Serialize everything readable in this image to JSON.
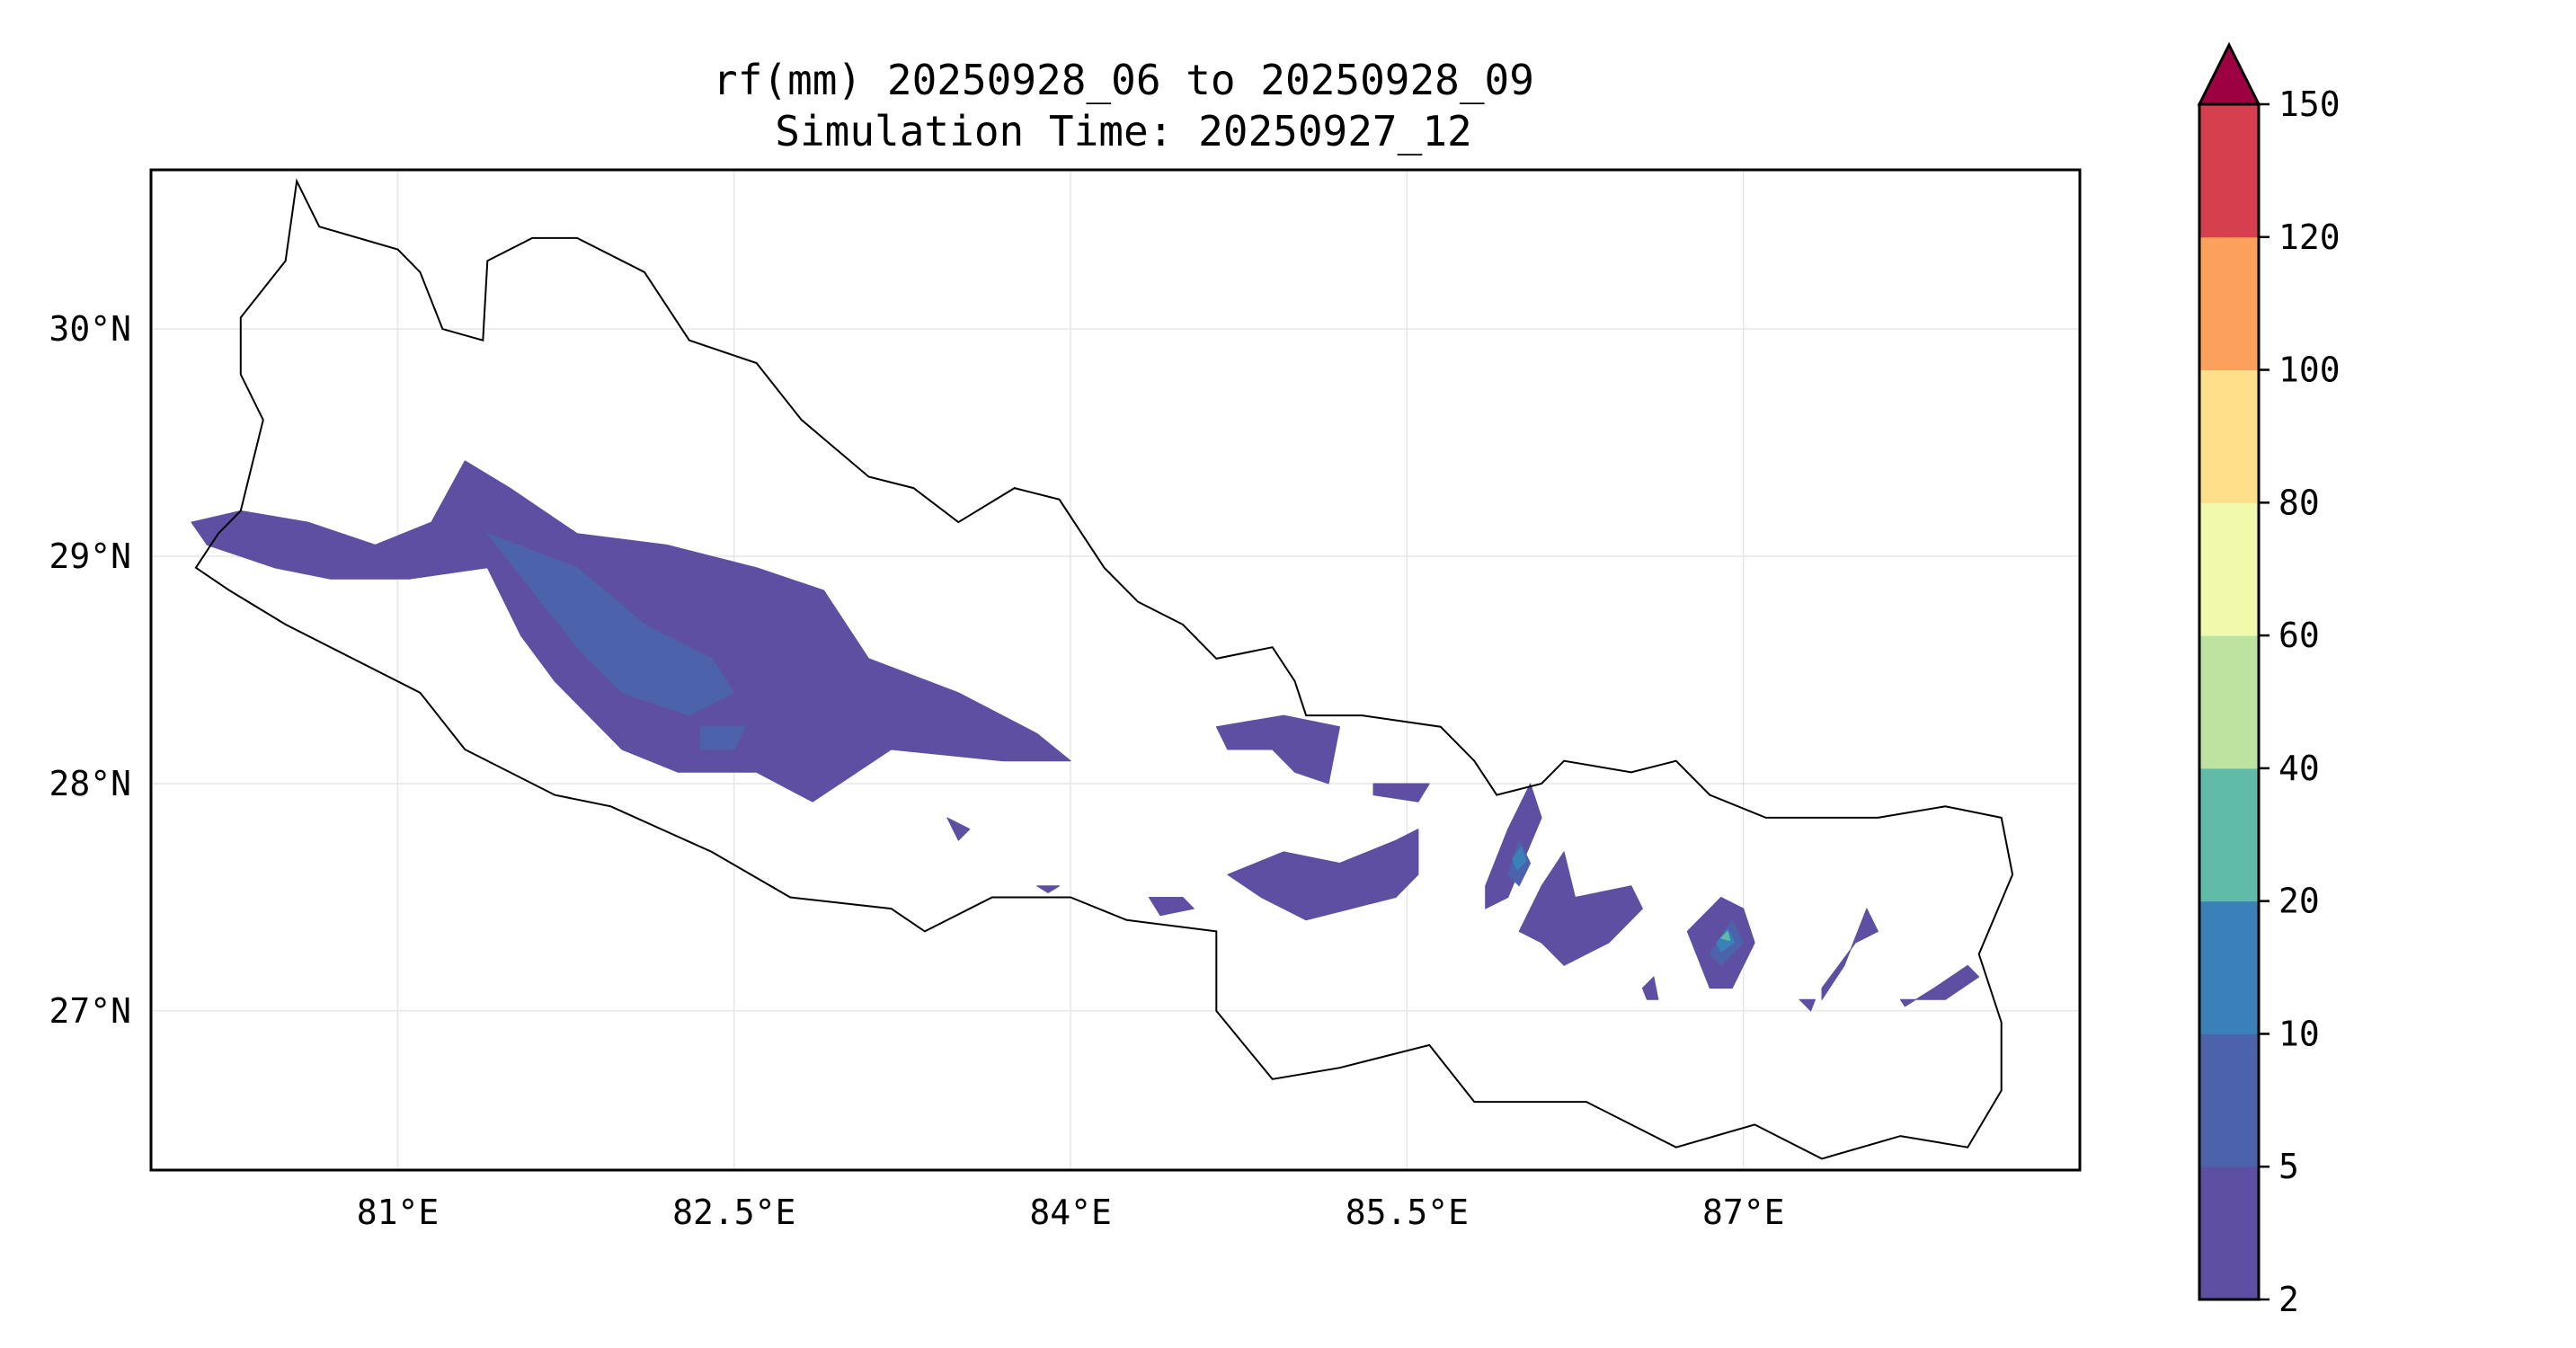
{
  "chart_data": {
    "type": "contour-map",
    "title": "rf(mm) 20250928_06 to 20250928_09",
    "subtitle": "Simulation Time: 20250927_12",
    "xlim": [
      79.9,
      88.5
    ],
    "ylim": [
      26.3,
      30.7
    ],
    "x_ticks": [
      {
        "value": 81.0,
        "label": "81°E"
      },
      {
        "value": 82.5,
        "label": "82.5°E"
      },
      {
        "value": 84.0,
        "label": "84°E"
      },
      {
        "value": 85.5,
        "label": "85.5°E"
      },
      {
        "value": 87.0,
        "label": "87°E"
      }
    ],
    "y_ticks": [
      {
        "value": 30.0,
        "label": "30°N"
      },
      {
        "value": 29.0,
        "label": "29°N"
      },
      {
        "value": 28.0,
        "label": "28°N"
      },
      {
        "value": 27.0,
        "label": "27°N"
      }
    ],
    "grid": true,
    "colorbar": {
      "levels": [
        2,
        5,
        10,
        20,
        40,
        60,
        80,
        100,
        120,
        150
      ],
      "labels": [
        "2",
        "5",
        "10",
        "20",
        "40",
        "60",
        "80",
        "100",
        "120",
        "150"
      ],
      "colors": [
        "#5e4fa2",
        "#4c63ab",
        "#3a80b9",
        "#60bba8",
        "#bde3a0",
        "#f1f9ac",
        "#fee08b",
        "#fba15b",
        "#d6404e"
      ],
      "extend_color": "#9e0142",
      "extend": "max"
    },
    "border": [
      [
        80.55,
        30.65
      ],
      [
        80.65,
        30.45
      ],
      [
        81.0,
        30.35
      ],
      [
        81.1,
        30.25
      ],
      [
        81.2,
        30.0
      ],
      [
        81.38,
        29.95
      ],
      [
        81.4,
        30.3
      ],
      [
        81.6,
        30.4
      ],
      [
        81.8,
        30.4
      ],
      [
        82.1,
        30.25
      ],
      [
        82.3,
        29.95
      ],
      [
        82.6,
        29.85
      ],
      [
        82.8,
        29.6
      ],
      [
        83.1,
        29.35
      ],
      [
        83.3,
        29.3
      ],
      [
        83.5,
        29.15
      ],
      [
        83.75,
        29.3
      ],
      [
        83.95,
        29.25
      ],
      [
        84.15,
        28.95
      ],
      [
        84.3,
        28.8
      ],
      [
        84.5,
        28.7
      ],
      [
        84.65,
        28.55
      ],
      [
        84.9,
        28.6
      ],
      [
        85.0,
        28.45
      ],
      [
        85.05,
        28.3
      ],
      [
        85.3,
        28.3
      ],
      [
        85.65,
        28.25
      ],
      [
        85.8,
        28.1
      ],
      [
        85.9,
        27.95
      ],
      [
        86.1,
        28.0
      ],
      [
        86.2,
        28.1
      ],
      [
        86.5,
        28.05
      ],
      [
        86.7,
        28.1
      ],
      [
        86.85,
        27.95
      ],
      [
        87.1,
        27.85
      ],
      [
        87.3,
        27.85
      ],
      [
        87.6,
        27.85
      ],
      [
        87.9,
        27.9
      ],
      [
        88.15,
        27.85
      ],
      [
        88.2,
        27.6
      ],
      [
        88.05,
        27.25
      ],
      [
        88.15,
        26.95
      ],
      [
        88.15,
        26.65
      ],
      [
        88.0,
        26.4
      ],
      [
        87.7,
        26.45
      ],
      [
        87.35,
        26.35
      ],
      [
        87.05,
        26.5
      ],
      [
        86.7,
        26.4
      ],
      [
        86.3,
        26.6
      ],
      [
        85.8,
        26.6
      ],
      [
        85.6,
        26.85
      ],
      [
        85.2,
        26.75
      ],
      [
        84.9,
        26.7
      ],
      [
        84.65,
        27.0
      ],
      [
        84.65,
        27.35
      ],
      [
        84.25,
        27.4
      ],
      [
        84.0,
        27.5
      ],
      [
        83.65,
        27.5
      ],
      [
        83.35,
        27.35
      ],
      [
        83.2,
        27.45
      ],
      [
        82.75,
        27.5
      ],
      [
        82.4,
        27.7
      ],
      [
        81.95,
        27.9
      ],
      [
        81.7,
        27.95
      ],
      [
        81.3,
        28.15
      ],
      [
        81.1,
        28.4
      ],
      [
        80.8,
        28.55
      ],
      [
        80.5,
        28.7
      ],
      [
        80.25,
        28.85
      ],
      [
        80.1,
        28.95
      ],
      [
        80.2,
        29.1
      ],
      [
        80.3,
        29.2
      ],
      [
        80.35,
        29.4
      ],
      [
        80.4,
        29.6
      ],
      [
        80.3,
        29.8
      ],
      [
        80.3,
        30.05
      ],
      [
        80.5,
        30.3
      ],
      [
        80.55,
        30.65
      ]
    ],
    "contours": [
      {
        "level": 2,
        "coords": [
          [
            80.08,
            29.15
          ],
          [
            80.3,
            29.2
          ],
          [
            80.6,
            29.15
          ],
          [
            80.9,
            29.05
          ],
          [
            81.15,
            29.15
          ],
          [
            81.3,
            29.42
          ],
          [
            81.5,
            29.3
          ],
          [
            81.8,
            29.1
          ],
          [
            82.2,
            29.05
          ],
          [
            82.6,
            28.95
          ],
          [
            82.9,
            28.85
          ],
          [
            83.1,
            28.55
          ],
          [
            83.5,
            28.4
          ],
          [
            83.85,
            28.22
          ],
          [
            84.0,
            28.1
          ],
          [
            83.7,
            28.1
          ],
          [
            83.2,
            28.15
          ],
          [
            82.85,
            27.92
          ],
          [
            82.6,
            28.05
          ],
          [
            82.25,
            28.05
          ],
          [
            82.0,
            28.15
          ],
          [
            81.7,
            28.45
          ],
          [
            81.55,
            28.65
          ],
          [
            81.4,
            28.95
          ],
          [
            81.05,
            28.9
          ],
          [
            80.7,
            28.9
          ],
          [
            80.45,
            28.95
          ],
          [
            80.15,
            29.05
          ]
        ]
      },
      {
        "level": 2,
        "coords": [
          [
            84.65,
            28.25
          ],
          [
            84.95,
            28.3
          ],
          [
            85.2,
            28.25
          ],
          [
            85.15,
            28.0
          ],
          [
            85.0,
            28.05
          ],
          [
            84.9,
            28.15
          ],
          [
            84.7,
            28.15
          ]
        ]
      },
      {
        "level": 2,
        "coords": [
          [
            85.35,
            28.0
          ],
          [
            85.6,
            28.0
          ],
          [
            85.55,
            27.92
          ],
          [
            85.35,
            27.95
          ]
        ]
      },
      {
        "level": 2,
        "coords": [
          [
            84.7,
            27.6
          ],
          [
            84.95,
            27.7
          ],
          [
            85.2,
            27.65
          ],
          [
            85.45,
            27.75
          ],
          [
            85.55,
            27.8
          ],
          [
            85.55,
            27.6
          ],
          [
            85.45,
            27.5
          ],
          [
            85.25,
            27.45
          ],
          [
            85.05,
            27.4
          ],
          [
            84.85,
            27.5
          ]
        ]
      },
      {
        "level": 2,
        "coords": [
          [
            84.35,
            27.5
          ],
          [
            84.5,
            27.5
          ],
          [
            84.55,
            27.45
          ],
          [
            84.4,
            27.42
          ]
        ]
      },
      {
        "level": 2,
        "coords": [
          [
            83.45,
            27.85
          ],
          [
            83.55,
            27.8
          ],
          [
            83.5,
            27.75
          ]
        ]
      },
      {
        "level": 2,
        "coords": [
          [
            83.85,
            27.55
          ],
          [
            83.95,
            27.55
          ],
          [
            83.9,
            27.52
          ]
        ]
      },
      {
        "level": 2,
        "coords": [
          [
            85.85,
            27.55
          ],
          [
            85.95,
            27.8
          ],
          [
            86.05,
            28.0
          ],
          [
            86.1,
            27.85
          ],
          [
            85.95,
            27.5
          ],
          [
            85.85,
            27.45
          ]
        ]
      },
      {
        "level": 2,
        "coords": [
          [
            86.0,
            27.35
          ],
          [
            86.1,
            27.55
          ],
          [
            86.2,
            27.7
          ],
          [
            86.25,
            27.5
          ],
          [
            86.5,
            27.55
          ],
          [
            86.55,
            27.45
          ],
          [
            86.4,
            27.3
          ],
          [
            86.2,
            27.2
          ],
          [
            86.1,
            27.3
          ]
        ]
      },
      {
        "level": 2,
        "coords": [
          [
            86.75,
            27.35
          ],
          [
            86.9,
            27.5
          ],
          [
            87.0,
            27.45
          ],
          [
            87.05,
            27.3
          ],
          [
            86.95,
            27.1
          ],
          [
            86.85,
            27.1
          ]
        ]
      },
      {
        "level": 2,
        "coords": [
          [
            86.55,
            27.1
          ],
          [
            86.6,
            27.15
          ],
          [
            86.62,
            27.05
          ],
          [
            86.57,
            27.05
          ]
        ]
      },
      {
        "level": 2,
        "coords": [
          [
            87.35,
            27.1
          ],
          [
            87.5,
            27.3
          ],
          [
            87.6,
            27.35
          ],
          [
            87.55,
            27.45
          ],
          [
            87.45,
            27.2
          ],
          [
            87.35,
            27.05
          ]
        ]
      },
      {
        "level": 2,
        "coords": [
          [
            87.7,
            27.05
          ],
          [
            87.9,
            27.05
          ],
          [
            88.05,
            27.15
          ],
          [
            88.0,
            27.2
          ],
          [
            87.85,
            27.1
          ],
          [
            87.72,
            27.02
          ]
        ]
      },
      {
        "level": 2,
        "coords": [
          [
            87.25,
            27.05
          ],
          [
            87.32,
            27.05
          ],
          [
            87.3,
            27.0
          ]
        ]
      },
      {
        "level": 5,
        "coords": [
          [
            81.4,
            29.1
          ],
          [
            81.8,
            28.95
          ],
          [
            82.1,
            28.7
          ],
          [
            82.4,
            28.55
          ],
          [
            82.5,
            28.4
          ],
          [
            82.3,
            28.3
          ],
          [
            82.0,
            28.4
          ],
          [
            81.8,
            28.6
          ],
          [
            81.6,
            28.85
          ]
        ]
      },
      {
        "level": 5,
        "coords": [
          [
            82.35,
            28.25
          ],
          [
            82.55,
            28.25
          ],
          [
            82.5,
            28.15
          ],
          [
            82.35,
            28.15
          ]
        ]
      },
      {
        "level": 5,
        "coords": [
          [
            85.95,
            27.6
          ],
          [
            86.0,
            27.75
          ],
          [
            86.05,
            27.65
          ],
          [
            86.0,
            27.55
          ]
        ]
      },
      {
        "level": 5,
        "coords": [
          [
            86.85,
            27.25
          ],
          [
            86.95,
            27.4
          ],
          [
            87.0,
            27.3
          ],
          [
            86.9,
            27.2
          ]
        ]
      },
      {
        "level": 10,
        "coords": [
          [
            85.97,
            27.67
          ],
          [
            86.01,
            27.72
          ],
          [
            86.03,
            27.66
          ],
          [
            85.99,
            27.62
          ]
        ]
      },
      {
        "level": 10,
        "coords": [
          [
            86.88,
            27.3
          ],
          [
            86.93,
            27.36
          ],
          [
            86.96,
            27.3
          ],
          [
            86.9,
            27.26
          ]
        ]
      },
      {
        "level": 20,
        "coords": [
          [
            86.9,
            27.32
          ],
          [
            86.93,
            27.35
          ],
          [
            86.94,
            27.31
          ]
        ]
      }
    ]
  }
}
